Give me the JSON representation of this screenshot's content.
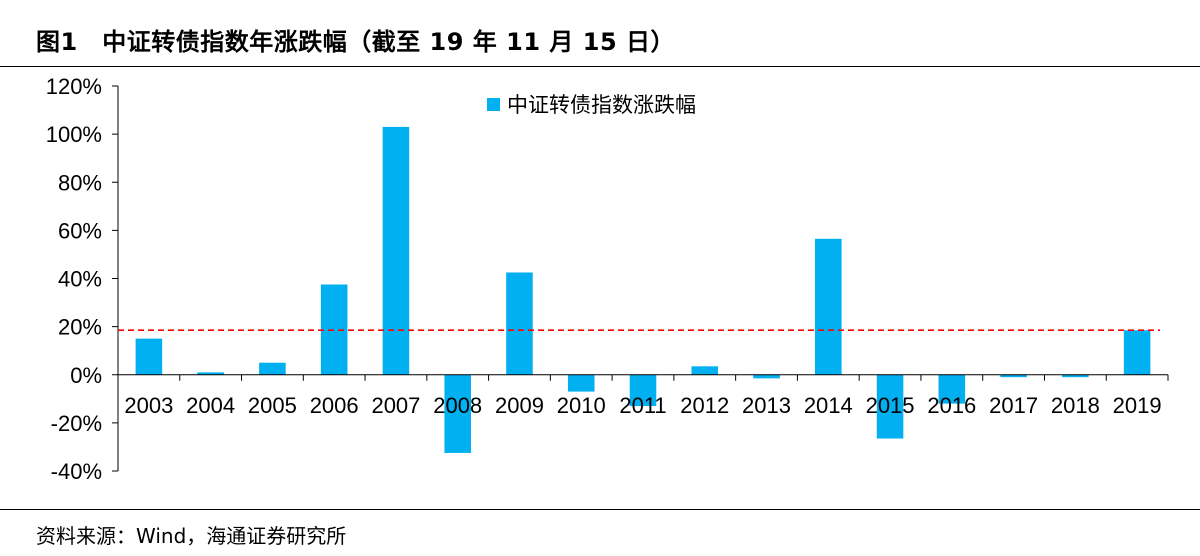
{
  "header": {
    "title": "图1　中证转债指数年涨跌幅（截至 19 年 11 月 15 日）"
  },
  "footer": {
    "source": "资料来源：Wind，海通证券研究所"
  },
  "chart_data": {
    "type": "bar",
    "categories": [
      "2003",
      "2004",
      "2005",
      "2006",
      "2007",
      "2008",
      "2009",
      "2010",
      "2011",
      "2012",
      "2013",
      "2014",
      "2015",
      "2016",
      "2017",
      "2018",
      "2019"
    ],
    "series": [
      {
        "name": "中证转债指数涨跌幅",
        "color": "#00B0F0",
        "values": [
          15,
          1,
          5,
          37.5,
          103,
          -32.5,
          42.5,
          -7,
          -13,
          3.5,
          -1.5,
          56.5,
          -26.5,
          -12,
          -1,
          -1,
          18.5
        ]
      }
    ],
    "reference_line": {
      "value": 18.5,
      "color": "#FF0000",
      "style": "dashed"
    },
    "ylim": [
      -40,
      120
    ],
    "yticks": [
      -40,
      -20,
      0,
      20,
      40,
      60,
      80,
      100,
      120
    ],
    "ytick_labels": [
      "-40%",
      "-20%",
      "0%",
      "20%",
      "40%",
      "60%",
      "80%",
      "100%",
      "120%"
    ],
    "grid": false,
    "legend_position": "top-center",
    "title": "",
    "xlabel": "",
    "ylabel": ""
  }
}
